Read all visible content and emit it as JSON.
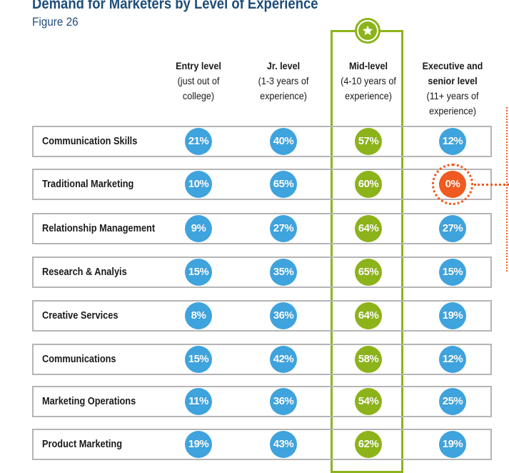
{
  "title": "Demand for Marketers by Level of Experience",
  "subtitle": "Figure 26",
  "colors": {
    "title": "#1f4e79",
    "blue": "#3fa3dd",
    "green": "#8db31b",
    "orange": "#ee5a1f"
  },
  "columns": [
    {
      "main": "Entry level",
      "sub": [
        "(just out of",
        "college)"
      ]
    },
    {
      "main": "Jr. level",
      "sub": [
        "(1-3 years of",
        "experience)"
      ]
    },
    {
      "main": "Mid-level",
      "sub": [
        "(4-10 years of",
        "experience)"
      ]
    },
    {
      "main": "Executive and senior level",
      "sub": [
        "(11+ years of",
        "experience)"
      ]
    }
  ],
  "highlight_icon": "star-icon",
  "chart_data": {
    "type": "table",
    "title": "Demand for Marketers by Level of Experience",
    "subtitle": "Figure 26",
    "columns": [
      "Entry level",
      "Jr. level",
      "Mid-level",
      "Executive and senior level"
    ],
    "highlighted_column": "Mid-level",
    "highlighted_cell": {
      "row": "Traditional Marketing",
      "column": "Executive and senior level"
    },
    "rows": [
      {
        "label": "Communication Skills",
        "values": [
          "21%",
          "40%",
          "57%",
          "12%"
        ]
      },
      {
        "label": "Traditional Marketing",
        "values": [
          "10%",
          "65%",
          "60%",
          "0%"
        ]
      },
      {
        "label": "Relationship Management",
        "values": [
          "9%",
          "27%",
          "64%",
          "27%"
        ]
      },
      {
        "label": "Research & Analyis",
        "values": [
          "15%",
          "35%",
          "65%",
          "15%"
        ]
      },
      {
        "label": "Creative Services",
        "values": [
          "8%",
          "36%",
          "64%",
          "19%"
        ]
      },
      {
        "label": "Communications",
        "values": [
          "15%",
          "42%",
          "58%",
          "12%"
        ]
      },
      {
        "label": "Marketing Operations",
        "values": [
          "11%",
          "36%",
          "54%",
          "25%"
        ]
      },
      {
        "label": "Product Marketing",
        "values": [
          "19%",
          "43%",
          "62%",
          "19%"
        ]
      }
    ]
  }
}
